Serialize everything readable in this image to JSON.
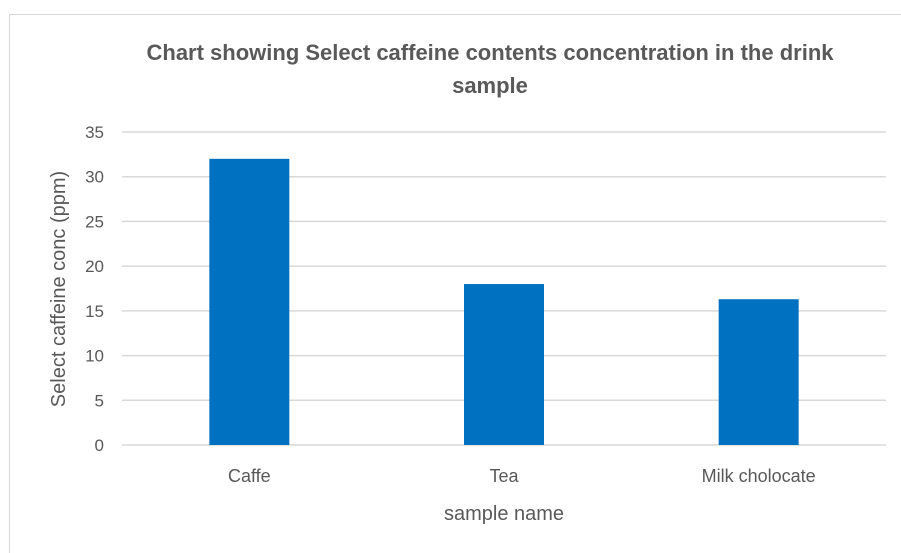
{
  "chart_data": {
    "type": "bar",
    "title": "Chart showing Select caffeine contents concentration in the drink sample",
    "xlabel": "sample name",
    "ylabel": "Select caffeine conc (ppm)",
    "categories": [
      "Caffe",
      "Tea",
      "Milk cholocate"
    ],
    "values": [
      32,
      18,
      16.3
    ],
    "ylim": [
      0,
      35
    ],
    "yticks": [
      0,
      5,
      10,
      15,
      20,
      25,
      30,
      35
    ],
    "grid": true,
    "bar_color": "#0070c0",
    "grid_color": "#d9d9d9"
  }
}
